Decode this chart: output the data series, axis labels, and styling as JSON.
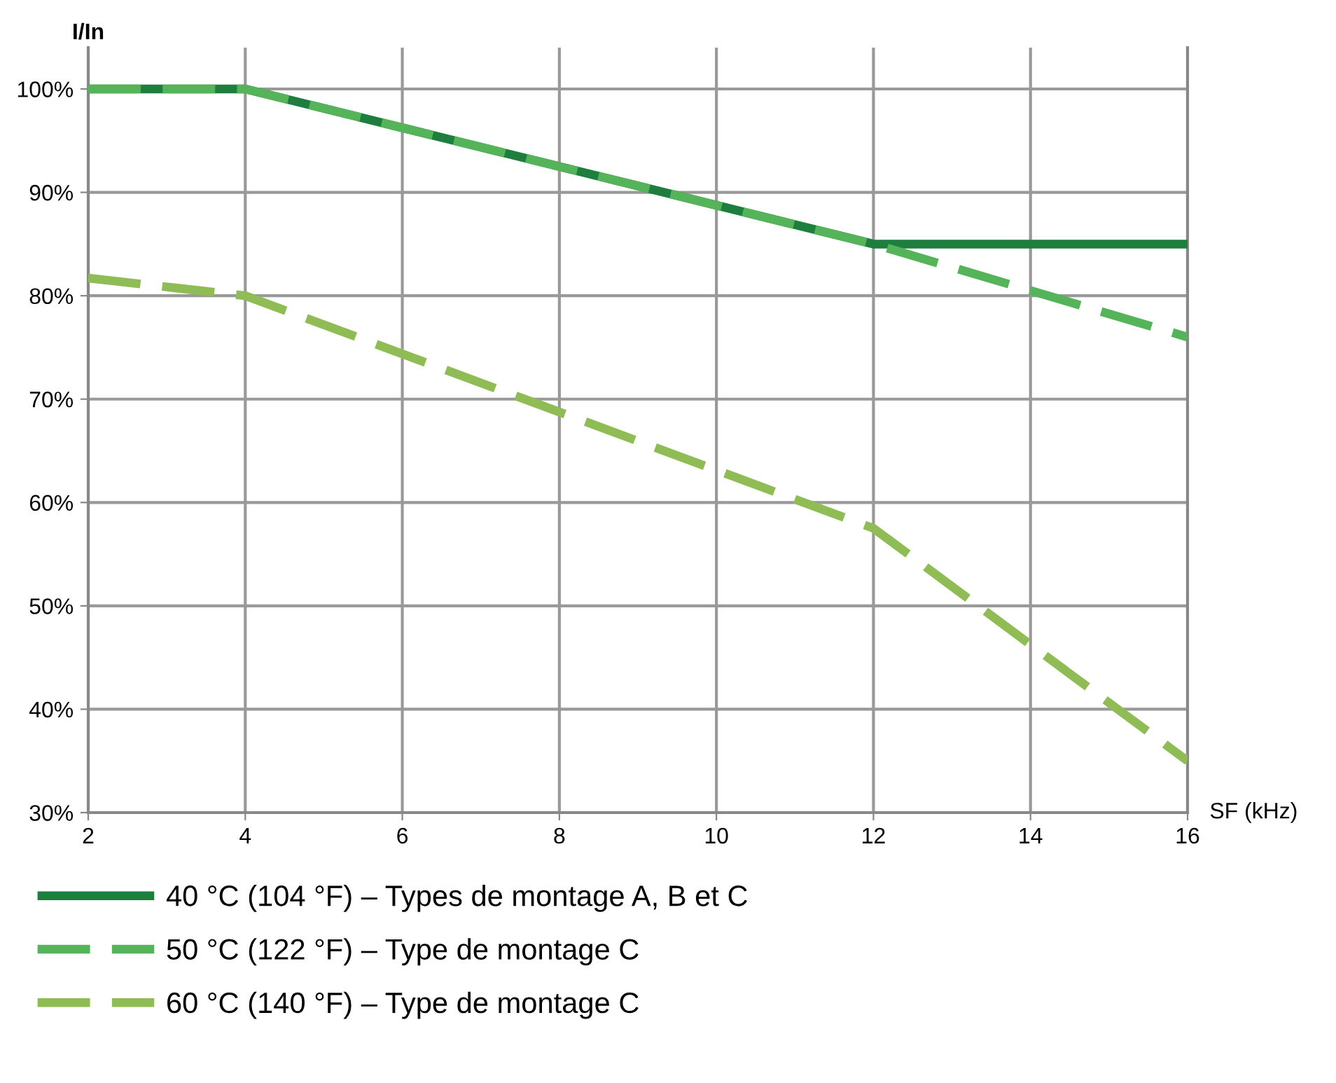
{
  "chart_data": {
    "type": "line",
    "ylabel": "I/In",
    "xlabel": "SF (kHz)",
    "x": [
      2,
      4,
      12,
      16
    ],
    "series": [
      {
        "name": "40 °C (104 °F) – Types de montage A, B et C",
        "color": "#1e7e3e",
        "line_style": "solid",
        "values": [
          100,
          100,
          85,
          85
        ]
      },
      {
        "name": "50 °C (122 °F) – Type de montage C",
        "color": "#55b45a",
        "line_style": "dashed",
        "values": [
          100,
          100,
          85,
          76
        ]
      },
      {
        "name": "60 °C (140 °F) – Type de montage C",
        "color": "#8fbc55",
        "line_style": "dashed",
        "values": [
          81.7,
          80,
          57.5,
          35
        ]
      }
    ],
    "xlim": [
      2,
      16
    ],
    "ylim": [
      30,
      104
    ],
    "xticks": [
      2,
      4,
      6,
      8,
      10,
      12,
      14,
      16
    ],
    "yticks": [
      {
        "value": 30,
        "label": "30%"
      },
      {
        "value": 40,
        "label": "40%"
      },
      {
        "value": 50,
        "label": "50%"
      },
      {
        "value": 60,
        "label": "60%"
      },
      {
        "value": 70,
        "label": "70%"
      },
      {
        "value": 80,
        "label": "80%"
      },
      {
        "value": 90,
        "label": "90%"
      },
      {
        "value": 100,
        "label": "100%"
      }
    ],
    "grid": true,
    "legend": "bottom",
    "marker": "none"
  }
}
